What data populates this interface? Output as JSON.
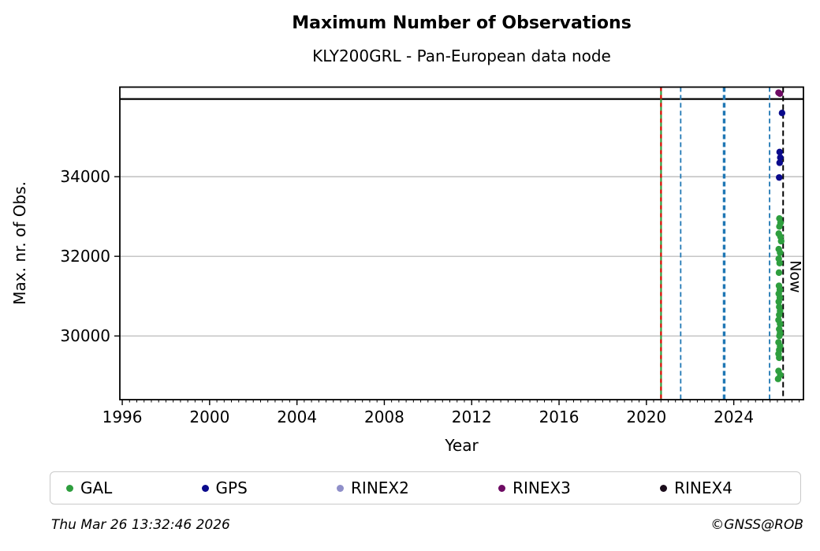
{
  "header": {
    "title": "Maximum Number of Observations",
    "subtitle": "KLY200GRL - Pan-European data node"
  },
  "footer": {
    "timestamp": "Thu Mar 26 13:32:46 2026",
    "credit": "©GNSS@ROB"
  },
  "chart_data": {
    "type": "scatter",
    "title": "Maximum Number of Observations",
    "subtitle": "KLY200GRL - Pan-European data node",
    "xlabel": "Year",
    "ylabel": "Max. nr. of Obs.",
    "xlim": [
      1995.89,
      2027.19
    ],
    "ylim": [
      28400,
      36250
    ],
    "x_major_ticks": [
      1996,
      2000,
      2004,
      2008,
      2012,
      2016,
      2020,
      2024
    ],
    "x_minor_tick_interval_years": 0.3333,
    "y_ticks": [
      30000,
      32000,
      34000
    ],
    "grid": "horizontal",
    "grid_color": "#b3b3b3",
    "frame_color": "#000000",
    "hline": {
      "y": 35950,
      "color": "#000000",
      "width": 2.2
    },
    "vlines": [
      {
        "year": 2020.67,
        "color": "#2e9e3e",
        "dash": "none",
        "width": 2.2,
        "label": ""
      },
      {
        "year": 2020.67,
        "color": "#e10600",
        "dash": "5,5",
        "width": 2.2,
        "label": ""
      },
      {
        "year": 2021.57,
        "color": "#1f77b4",
        "dash": "6,4",
        "width": 1.8,
        "label": ""
      },
      {
        "year": 2023.56,
        "color": "#1f77b4",
        "dash": "6,4",
        "width": 3.4,
        "label": ""
      },
      {
        "year": 2025.64,
        "color": "#1f77b4",
        "dash": "6,4",
        "width": 1.8,
        "label": ""
      },
      {
        "year": 2026.26,
        "color": "#000000",
        "dash": "7,4",
        "width": 2.0,
        "label": "Now"
      }
    ],
    "now_label": "Now",
    "legend_position": "bottom",
    "series": [
      {
        "name": "GAL",
        "color": "#2e9e3e",
        "points": [
          [
            2026.09,
            32950
          ],
          [
            2026.14,
            32840
          ],
          [
            2026.09,
            32750
          ],
          [
            2026.06,
            32570
          ],
          [
            2026.14,
            32490
          ],
          [
            2026.17,
            32380
          ],
          [
            2026.06,
            32180
          ],
          [
            2026.12,
            32090
          ],
          [
            2026.06,
            31940
          ],
          [
            2026.1,
            31830
          ],
          [
            2026.07,
            31590
          ],
          [
            2026.07,
            31260
          ],
          [
            2026.11,
            31160
          ],
          [
            2026.06,
            31060
          ],
          [
            2026.11,
            30960
          ],
          [
            2026.06,
            30860
          ],
          [
            2026.08,
            30730
          ],
          [
            2026.12,
            30630
          ],
          [
            2026.08,
            30530
          ],
          [
            2026.05,
            30400
          ],
          [
            2026.12,
            30300
          ],
          [
            2026.08,
            30170
          ],
          [
            2026.12,
            30070
          ],
          [
            2026.09,
            30000
          ],
          [
            2026.05,
            29840
          ],
          [
            2026.12,
            29745
          ],
          [
            2026.08,
            29650
          ],
          [
            2026.05,
            29550
          ],
          [
            2026.08,
            29450
          ],
          [
            2026.05,
            29120
          ],
          [
            2026.13,
            29020
          ],
          [
            2026.03,
            28920
          ]
        ]
      },
      {
        "name": "GPS",
        "color": "#0a0a8c",
        "points": [
          [
            2026.21,
            35600
          ],
          [
            2026.1,
            34620
          ],
          [
            2026.13,
            34480
          ],
          [
            2026.1,
            34350
          ],
          [
            2026.08,
            33980
          ]
        ]
      },
      {
        "name": "RINEX2",
        "color": "#8f8fc9",
        "points": []
      },
      {
        "name": "RINEX3",
        "color": "#6e0b63",
        "points": [
          [
            2026.05,
            36110
          ],
          [
            2026.11,
            36085
          ]
        ]
      },
      {
        "name": "RINEX4",
        "color": "#1b0d1b",
        "points": []
      }
    ]
  }
}
